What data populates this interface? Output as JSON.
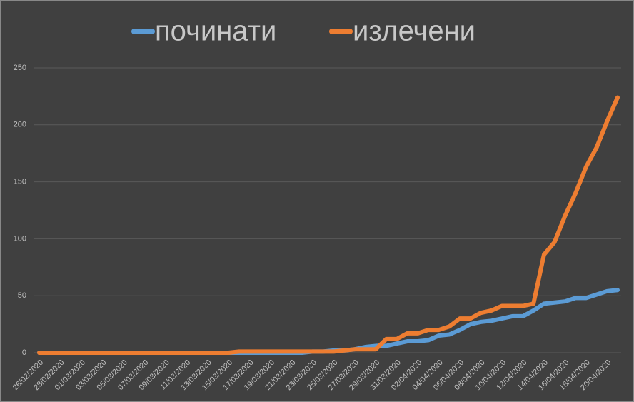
{
  "chart_data": {
    "type": "line",
    "categories": [
      "26/02/2020",
      null,
      "28/02/2020",
      null,
      "01/03/2020",
      null,
      "03/03/2020",
      null,
      "05/03/2020",
      null,
      "07/03/2020",
      null,
      "09/03/2020",
      null,
      "11/03/2020",
      null,
      "13/03/2020",
      null,
      "15/03/2020",
      null,
      "17/03/2020",
      null,
      "19/03/2020",
      null,
      "21/03/2020",
      null,
      "23/03/2020",
      null,
      "25/03/2020",
      null,
      "27/03/2020",
      null,
      "29/03/2020",
      null,
      "31/03/2020",
      null,
      "02/04/2020",
      null,
      "04/04/2020",
      null,
      "06/04/2020",
      null,
      "08/04/2020",
      null,
      "10/04/2020",
      null,
      "12/04/2020",
      null,
      "14/04/2020",
      null,
      "16/04/2020",
      null,
      "18/04/2020",
      null,
      "20/04/2020",
      null
    ],
    "series": [
      {
        "name": "починати",
        "color": "#5b9bd5",
        "values": [
          0,
          0,
          0,
          0,
          0,
          0,
          0,
          0,
          0,
          0,
          0,
          0,
          0,
          0,
          0,
          0,
          0,
          0,
          0,
          0,
          0,
          0,
          0,
          0,
          0,
          0,
          1,
          1,
          2,
          2,
          3,
          5,
          6,
          6,
          8,
          10,
          10,
          11,
          15,
          16,
          20,
          25,
          27,
          28,
          30,
          32,
          32,
          37,
          43,
          44,
          45,
          48,
          48,
          51,
          54,
          55
        ]
      },
      {
        "name": "излечени",
        "color": "#ed7d31",
        "values": [
          0,
          0,
          0,
          0,
          0,
          0,
          0,
          0,
          0,
          0,
          0,
          0,
          0,
          0,
          0,
          0,
          0,
          0,
          0,
          1,
          1,
          1,
          1,
          1,
          1,
          1,
          1,
          1,
          1,
          2,
          3,
          3,
          3,
          12,
          12,
          17,
          17,
          20,
          20,
          23,
          30,
          30,
          35,
          37,
          41,
          41,
          41,
          43,
          86,
          97,
          120,
          140,
          163,
          180,
          203,
          224
        ]
      }
    ],
    "ylim": [
      0,
      250
    ],
    "yticks": [
      0,
      50,
      100,
      150,
      200,
      250
    ],
    "grid": true,
    "legend": "top"
  }
}
